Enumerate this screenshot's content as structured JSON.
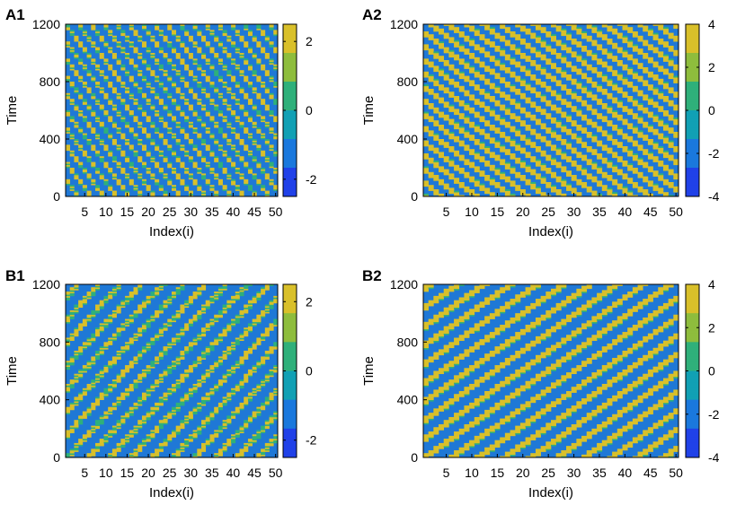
{
  "chart_data": [
    {
      "panel_label": "A1",
      "type": "heatmap",
      "xlabel": "Index(i)",
      "ylabel": "Time",
      "x_ticks": [
        5,
        10,
        15,
        20,
        25,
        30,
        35,
        40,
        45,
        50
      ],
      "y_ticks": [
        0,
        400,
        800,
        1200
      ],
      "xlim": [
        0,
        50
      ],
      "ylim": [
        0,
        1200
      ],
      "colorbar_ticks": [
        2,
        0,
        -2
      ],
      "color_range": [
        -2.5,
        2.5
      ],
      "wave_direction": "rightward",
      "stripe_period_index": 3.0,
      "stripe_slope_time_per_index": 40,
      "duty": 0.3,
      "fragmented": true
    },
    {
      "panel_label": "A2",
      "type": "heatmap",
      "xlabel": "Index(i)",
      "ylabel": "Time",
      "x_ticks": [
        5,
        10,
        15,
        20,
        25,
        30,
        35,
        40,
        45,
        50
      ],
      "y_ticks": [
        0,
        400,
        800,
        1200
      ],
      "xlim": [
        0,
        50
      ],
      "ylim": [
        0,
        1200
      ],
      "colorbar_ticks": [
        4,
        2,
        0,
        -2,
        -4
      ],
      "color_range": [
        -4,
        4
      ],
      "wave_direction": "rightward",
      "stripe_period_index": 3.4,
      "stripe_slope_time_per_index": 28,
      "duty": 0.42,
      "fragmented": false
    },
    {
      "panel_label": "B1",
      "type": "heatmap",
      "xlabel": "Index(i)",
      "ylabel": "Time",
      "x_ticks": [
        5,
        10,
        15,
        20,
        25,
        30,
        35,
        40,
        45,
        50
      ],
      "y_ticks": [
        0,
        400,
        800,
        1200
      ],
      "xlim": [
        0,
        50
      ],
      "ylim": [
        0,
        1200
      ],
      "colorbar_ticks": [
        2,
        0,
        -2
      ],
      "color_range": [
        -2.5,
        2.5
      ],
      "wave_direction": "leftward",
      "stripe_period_index": 5.0,
      "stripe_slope_time_per_index": 32,
      "duty": 0.32,
      "fragmented": true
    },
    {
      "panel_label": "B2",
      "type": "heatmap",
      "xlabel": "Index(i)",
      "ylabel": "Time",
      "x_ticks": [
        5,
        10,
        15,
        20,
        25,
        30,
        35,
        40,
        45,
        50
      ],
      "y_ticks": [
        0,
        400,
        800,
        1200
      ],
      "xlim": [
        0,
        50
      ],
      "ylim": [
        0,
        1200
      ],
      "colorbar_ticks": [
        4,
        2,
        0,
        -2,
        -4
      ],
      "color_range": [
        -4,
        4
      ],
      "wave_direction": "leftward",
      "stripe_period_index": 5.2,
      "stripe_slope_time_per_index": 25,
      "duty": 0.34,
      "fragmented": false
    }
  ],
  "colors": {
    "background_level": "#1f78d6",
    "high_level": "#f7e23a",
    "mid_level": "#1fa38a",
    "colormap": [
      "#2041e8",
      "#1a78dd",
      "#11a0b4",
      "#2fb07a",
      "#8ebd3d",
      "#d9c02a",
      "#f9fb0e"
    ]
  }
}
